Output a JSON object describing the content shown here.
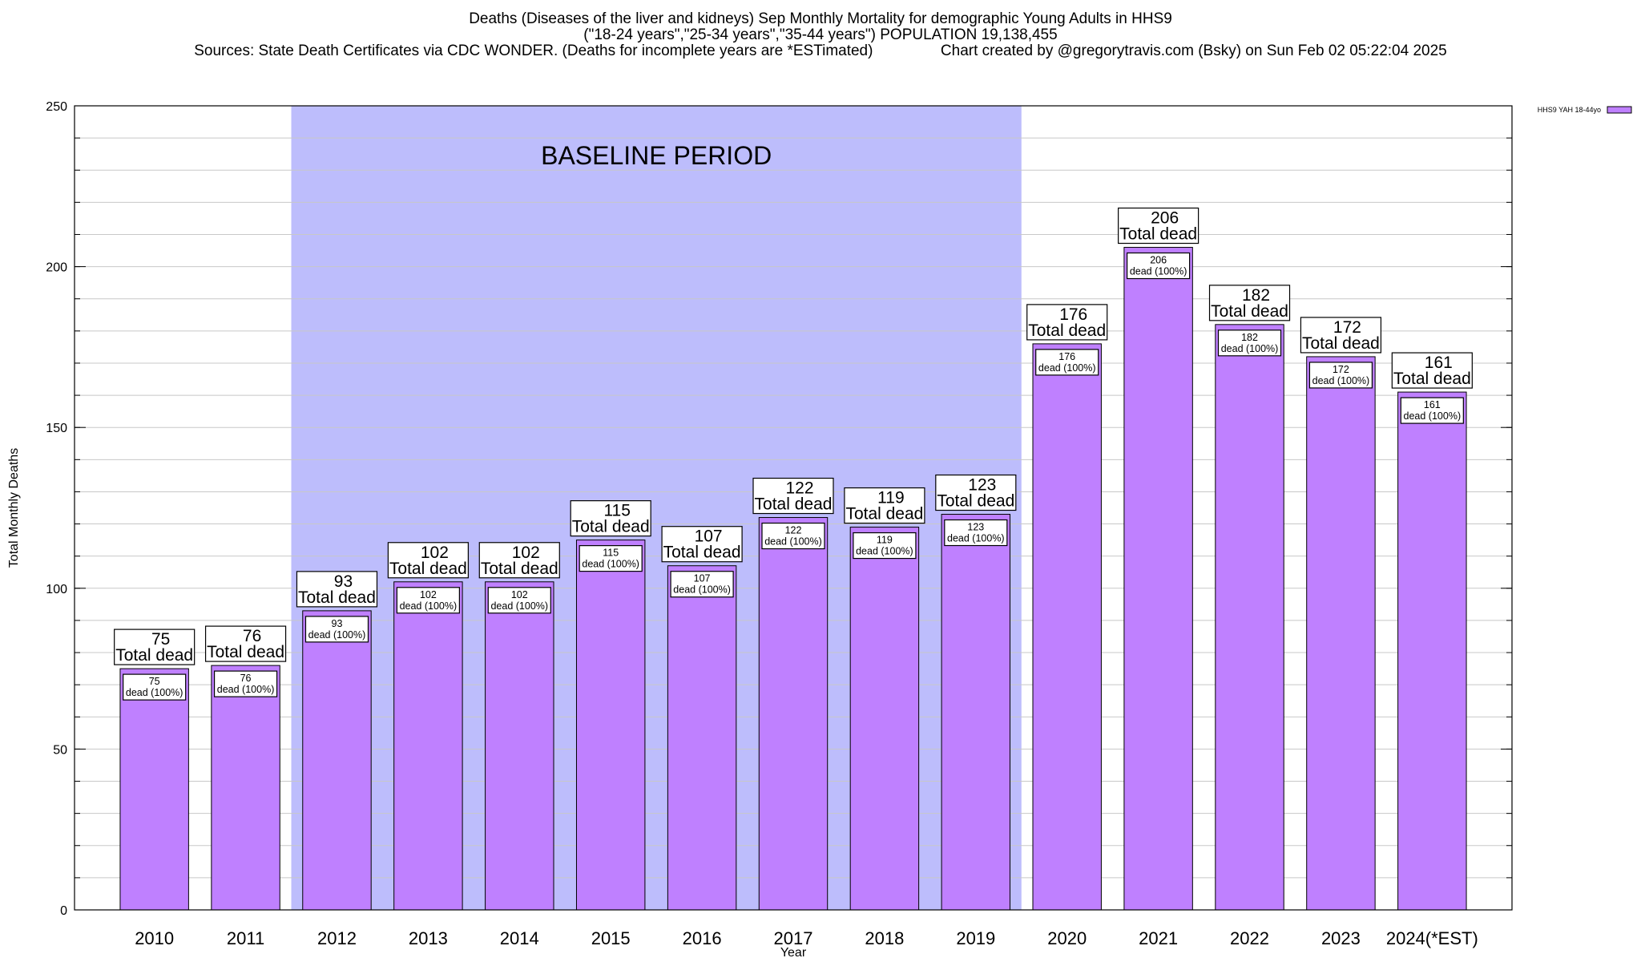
{
  "titles": {
    "line1": "Deaths (Diseases of the liver and kidneys) Sep Monthly Mortality for demographic Young Adults in HHS9",
    "line2": "(\"18-24 years\",\"25-34 years\",\"35-44 years\") POPULATION 19,138,455",
    "line3": "Sources: State Death Certificates via CDC WONDER. (Deaths for incomplete years are *ESTimated)                Chart created by @gregorytravis.com (Bsky) on Sun Feb 02 05:22:04 2025"
  },
  "colors": {
    "bar": "#bf80ff",
    "baseline_shade": "#bdbdfc",
    "grid": "#c8c8c8"
  },
  "chart_data": {
    "type": "bar",
    "xlabel": "Year",
    "ylabel": "Total Monthly Deaths",
    "ylim": [
      0,
      250
    ],
    "yticks": [
      0,
      50,
      100,
      150,
      200,
      250
    ],
    "grid": true,
    "legend": {
      "position": "top-right",
      "entries": [
        "HHS9 YAH 18-44yo"
      ]
    },
    "categories": [
      "2010",
      "2011",
      "2012",
      "2013",
      "2014",
      "2015",
      "2016",
      "2017",
      "2018",
      "2019",
      "2020",
      "2021",
      "2022",
      "2023",
      "2024(*EST)"
    ],
    "series": [
      {
        "name": "HHS9 YAH 18-44yo",
        "values": [
          75,
          76,
          93,
          102,
          102,
          115,
          107,
          122,
          119,
          123,
          176,
          206,
          182,
          172,
          161
        ]
      }
    ],
    "bar_label_suffix": "Total dead",
    "inner_label_suffix": "dead (100%)",
    "shaded_region": {
      "label": "BASELINE PERIOD",
      "from": "2012",
      "to": "2019"
    }
  }
}
